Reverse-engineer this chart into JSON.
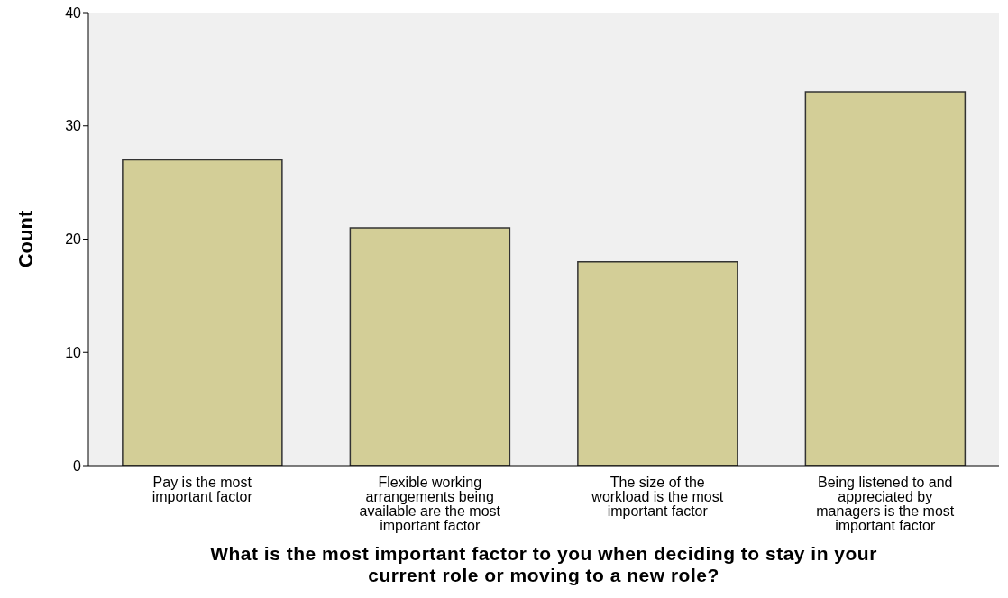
{
  "chart_data": {
    "type": "bar",
    "xlabel": "What is the most important factor to you when deciding to stay in your current role or moving to a new role?",
    "ylabel": "Count",
    "categories": [
      "Pay is the most important factor",
      "Flexible working arrangements being available are the most important factor",
      "The size of the workload is the most important factor",
      "Being listened to and appreciated by managers is the most important factor"
    ],
    "values": [
      27,
      21,
      18,
      33
    ],
    "color": "#d3ce97",
    "ylim": [
      0,
      40
    ],
    "yticks": [
      0,
      10,
      20,
      30,
      40
    ],
    "grid": false
  }
}
